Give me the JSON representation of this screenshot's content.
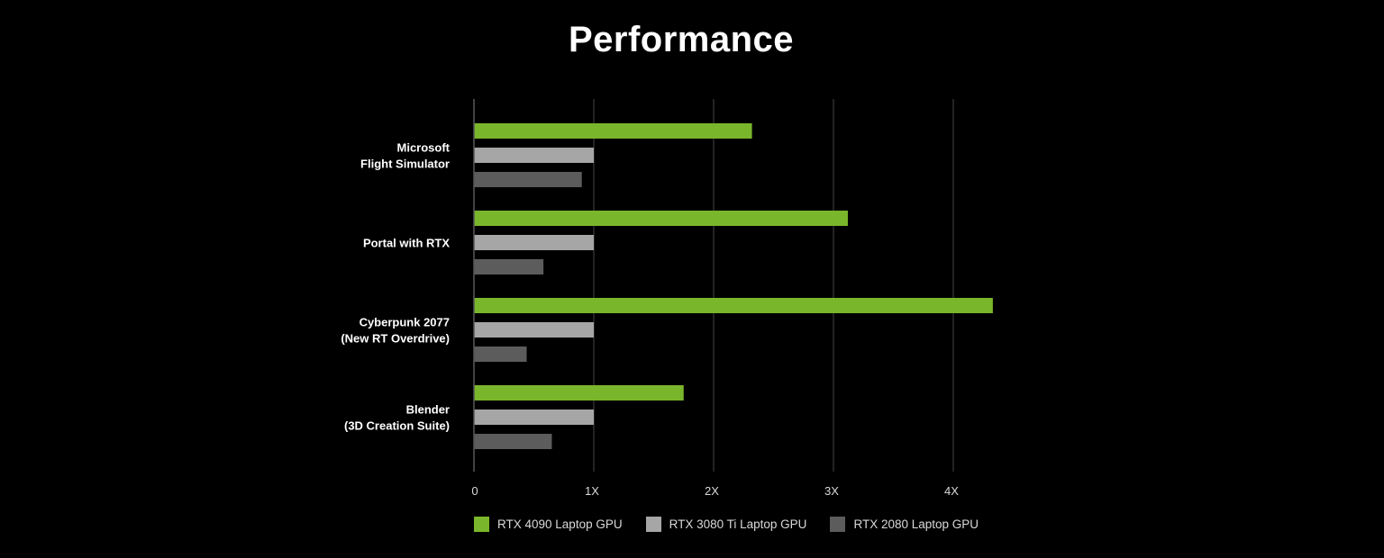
{
  "chart_data": {
    "type": "bar",
    "orientation": "horizontal",
    "title": "Performance",
    "categories": [
      [
        "Microsoft",
        "Flight Simulator"
      ],
      [
        "Portal with RTX"
      ],
      [
        "Cyberpunk 2077",
        "(New RT Overdrive)"
      ],
      [
        "Blender",
        "(3D Creation Suite)"
      ]
    ],
    "series": [
      {
        "name": "RTX 4090 Laptop GPU",
        "color": "#7ab62b",
        "values": [
          2.32,
          3.12,
          4.33,
          1.75
        ]
      },
      {
        "name": "RTX 3080 Ti Laptop GPU",
        "color": "#a6a6a6",
        "values": [
          1.0,
          1.0,
          1.0,
          1.0
        ]
      },
      {
        "name": "RTX 2080 Laptop GPU",
        "color": "#5c5c5c",
        "values": [
          0.9,
          0.58,
          0.44,
          0.65
        ]
      }
    ],
    "xlim": [
      0,
      4
    ],
    "xticks": [
      0,
      1,
      2,
      3,
      4
    ],
    "xtick_labels": [
      "0",
      "1X",
      "2X",
      "3X",
      "4X"
    ],
    "grid": true,
    "legend_position": "bottom"
  }
}
